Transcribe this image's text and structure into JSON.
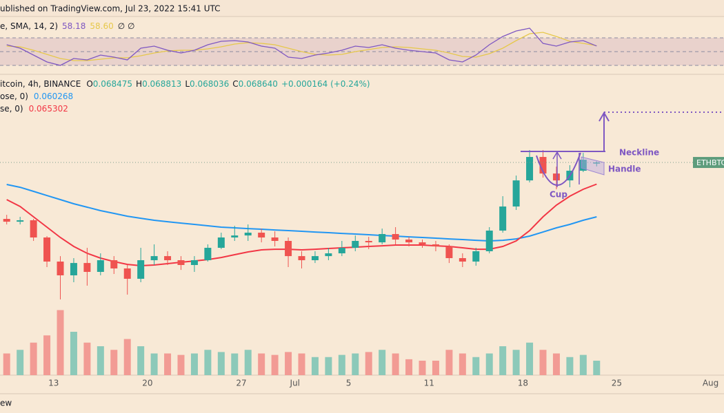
{
  "header": {
    "published": "ublished on TradingView.com, Jul 23, 2022 15:41 UTC",
    "footer": "ew"
  },
  "chart_data": {
    "type": "candlestick",
    "legend": {
      "symbol": "itcoin, 4h, BINANCE",
      "ohlc": [
        [
          "O",
          "0.068475"
        ],
        [
          "H",
          "0.068813"
        ],
        [
          "L",
          "0.068036"
        ],
        [
          "C",
          "0.068640"
        ]
      ],
      "change": "+0.000164 (+0.24%)"
    },
    "price_label": "ETHBTC",
    "x": [
      "2022-06-09",
      "2022-06-10",
      "2022-06-11",
      "2022-06-12",
      "2022-06-13",
      "2022-06-14",
      "2022-06-15",
      "2022-06-16",
      "2022-06-17",
      "2022-06-18",
      "2022-06-19",
      "2022-06-20",
      "2022-06-21",
      "2022-06-22",
      "2022-06-23",
      "2022-06-24",
      "2022-06-25",
      "2022-06-26",
      "2022-06-27",
      "2022-06-28",
      "2022-06-29",
      "2022-06-30",
      "2022-07-01",
      "2022-07-02",
      "2022-07-03",
      "2022-07-04",
      "2022-07-05",
      "2022-07-06",
      "2022-07-07",
      "2022-07-08",
      "2022-07-09",
      "2022-07-10",
      "2022-07-11",
      "2022-07-12",
      "2022-07-13",
      "2022-07-14",
      "2022-07-15",
      "2022-07-16",
      "2022-07-17",
      "2022-07-18",
      "2022-07-19",
      "2022-07-20",
      "2022-07-21",
      "2022-07-22",
      "2022-07-23"
    ],
    "open": [
      0.05995,
      0.05952,
      0.05974,
      0.05709,
      0.05338,
      0.05126,
      0.05316,
      0.05179,
      0.05359,
      0.05232,
      0.05073,
      0.05359,
      0.05422,
      0.05359,
      0.05285,
      0.05359,
      0.0555,
      0.05709,
      0.0574,
      0.05783,
      0.05709,
      0.05656,
      0.05422,
      0.05359,
      0.05422,
      0.05465,
      0.0555,
      0.05656,
      0.05634,
      0.05762,
      0.05677,
      0.05634,
      0.05603,
      0.05571,
      0.05391,
      0.05338,
      0.05497,
      0.05815,
      0.06186,
      0.06588,
      0.06949,
      0.06694,
      0.06588,
      0.06737,
      0.068475
    ],
    "high": [
      0.06058,
      0.06027,
      0.05995,
      0.0573,
      0.05422,
      0.05391,
      0.0555,
      0.05465,
      0.05422,
      0.05285,
      0.0555,
      0.05603,
      0.05497,
      0.05422,
      0.05422,
      0.05603,
      0.05783,
      0.05889,
      0.0591,
      0.05846,
      0.05804,
      0.05709,
      0.05497,
      0.05497,
      0.0555,
      0.05656,
      0.0574,
      0.05719,
      0.05846,
      0.05868,
      0.05719,
      0.05677,
      0.05656,
      0.05603,
      0.05465,
      0.0555,
      0.05868,
      0.06345,
      0.06663,
      0.07055,
      0.07055,
      0.068,
      0.06822,
      0.07012,
      0.068813
    ],
    "low": [
      0.0591,
      0.0591,
      0.05656,
      0.05253,
      0.04755,
      0.0502,
      0.04967,
      0.05126,
      0.05147,
      0.04829,
      0.0502,
      0.05285,
      0.05285,
      0.0521,
      0.05179,
      0.05338,
      0.05529,
      0.05656,
      0.05656,
      0.05634,
      0.05571,
      0.05253,
      0.05232,
      0.05316,
      0.05359,
      0.05422,
      0.05497,
      0.05529,
      0.05603,
      0.05603,
      0.05571,
      0.0555,
      0.05497,
      0.05316,
      0.05253,
      0.05274,
      0.05465,
      0.05783,
      0.06133,
      0.06557,
      0.06631,
      0.06451,
      0.06482,
      0.06716,
      0.068036
    ],
    "close": [
      0.05952,
      0.05974,
      0.05709,
      0.05338,
      0.05126,
      0.05316,
      0.05179,
      0.05359,
      0.05232,
      0.05073,
      0.05359,
      0.05422,
      0.05359,
      0.05285,
      0.05359,
      0.0555,
      0.05709,
      0.0574,
      0.05783,
      0.05709,
      0.05656,
      0.05422,
      0.05359,
      0.05422,
      0.05465,
      0.0555,
      0.05656,
      0.05634,
      0.05762,
      0.05677,
      0.05634,
      0.05603,
      0.05571,
      0.05391,
      0.05338,
      0.05497,
      0.05815,
      0.06186,
      0.06588,
      0.06949,
      0.06694,
      0.06588,
      0.06737,
      0.06906,
      0.06864
    ],
    "up_color": "#26a69a",
    "down_color": "#ef5350",
    "ylim": [
      0.04702,
      0.07882
    ],
    "xlim": [
      "2022-06-09",
      "2022-08-02"
    ],
    "xticks": [
      {
        "value": "2022-06-13",
        "label": "13"
      },
      {
        "value": "2022-06-20",
        "label": "20"
      },
      {
        "value": "2022-06-27",
        "label": "27"
      },
      {
        "value": "2022-07-01",
        "label": "Jul"
      },
      {
        "value": "2022-07-05",
        "label": "5"
      },
      {
        "value": "2022-07-11",
        "label": "11"
      },
      {
        "value": "2022-07-18",
        "label": "18"
      },
      {
        "value": "2022-07-25",
        "label": "25"
      },
      {
        "value": "2022-08-01",
        "label": "Aug"
      }
    ],
    "series": [
      {
        "name": "ose, 0)",
        "color": "#2196f3",
        "values": [
          0.06525,
          0.06482,
          0.06419,
          0.06355,
          0.06292,
          0.06228,
          0.06175,
          0.06122,
          0.0608,
          0.06037,
          0.06005,
          0.05974,
          0.05952,
          0.05931,
          0.0591,
          0.05889,
          0.05868,
          0.05857,
          0.05846,
          0.05836,
          0.05825,
          0.05815,
          0.05804,
          0.05793,
          0.05783,
          0.05772,
          0.05762,
          0.05751,
          0.0574,
          0.0573,
          0.05719,
          0.05709,
          0.05698,
          0.05687,
          0.05677,
          0.05666,
          0.05656,
          0.05666,
          0.05687,
          0.0573,
          0.05793,
          0.05857,
          0.0591,
          0.05974,
          0.060268
        ]
      },
      {
        "name": "se, 0)",
        "color": "#f23645",
        "values": [
          0.06292,
          0.06186,
          0.06027,
          0.05868,
          0.05709,
          0.05571,
          0.05465,
          0.05391,
          0.05338,
          0.05295,
          0.05274,
          0.05285,
          0.05306,
          0.05327,
          0.05348,
          0.05369,
          0.05401,
          0.05444,
          0.05486,
          0.05518,
          0.05528,
          0.05528,
          0.05518,
          0.05528,
          0.05539,
          0.0555,
          0.0556,
          0.05571,
          0.05581,
          0.05592,
          0.05592,
          0.05592,
          0.05581,
          0.05571,
          0.0555,
          0.05528,
          0.05528,
          0.05571,
          0.05656,
          0.05815,
          0.06027,
          0.06207,
          0.06345,
          0.06451,
          0.065302
        ]
      }
    ],
    "volume": {
      "up_color": "#8cc9b9",
      "down_color": "#f29b94",
      "ylim": [
        0,
        100
      ],
      "values": [
        30,
        35,
        45,
        55,
        90,
        60,
        45,
        40,
        35,
        50,
        40,
        30,
        30,
        28,
        30,
        35,
        32,
        30,
        35,
        30,
        28,
        32,
        30,
        25,
        25,
        28,
        30,
        32,
        35,
        30,
        22,
        20,
        20,
        35,
        30,
        25,
        30,
        40,
        35,
        45,
        35,
        30,
        25,
        28,
        20
      ]
    },
    "rsi": {
      "legend": "e, SMA, 14, 2)",
      "ylim": [
        20,
        100
      ],
      "levels": [
        70,
        50,
        30
      ],
      "marks": "∅ ∅",
      "series": [
        {
          "name": "58.18",
          "color": "#7e57c2",
          "values": [
            60,
            55,
            45,
            35,
            30,
            40,
            38,
            45,
            42,
            38,
            55,
            58,
            52,
            48,
            52,
            60,
            65,
            66,
            64,
            58,
            55,
            42,
            40,
            45,
            48,
            52,
            58,
            56,
            60,
            55,
            52,
            50,
            48,
            38,
            35,
            45,
            60,
            72,
            80,
            84,
            62,
            58,
            64,
            66,
            58.18
          ]
        },
        {
          "name": "58.60",
          "color": "#e6c84a",
          "values": [
            58,
            57,
            52,
            46,
            40,
            37,
            37,
            39,
            41,
            41,
            44,
            48,
            51,
            52,
            52,
            54,
            57,
            61,
            63,
            62,
            60,
            55,
            50,
            46,
            45,
            46,
            50,
            53,
            56,
            57,
            56,
            54,
            52,
            48,
            43,
            42,
            47,
            55,
            66,
            76,
            78,
            72,
            65,
            62,
            58.6
          ]
        }
      ]
    },
    "annotations": {
      "neckline": "Neckline",
      "handle": "Handle",
      "cup": "Cup"
    }
  }
}
